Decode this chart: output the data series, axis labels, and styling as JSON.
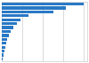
{
  "relative_values": [
    100,
    78,
    63,
    32,
    23,
    18,
    14,
    11,
    9,
    7,
    5,
    4,
    3,
    2,
    1
  ],
  "bar_color": "#2979c5",
  "background_color": "#ffffff",
  "plot_bg_color": "#ffffff",
  "grid_color": "#cccccc",
  "border_color": "#cccccc",
  "figsize": [
    1.0,
    0.71
  ],
  "dpi": 100,
  "n_bars": 15
}
